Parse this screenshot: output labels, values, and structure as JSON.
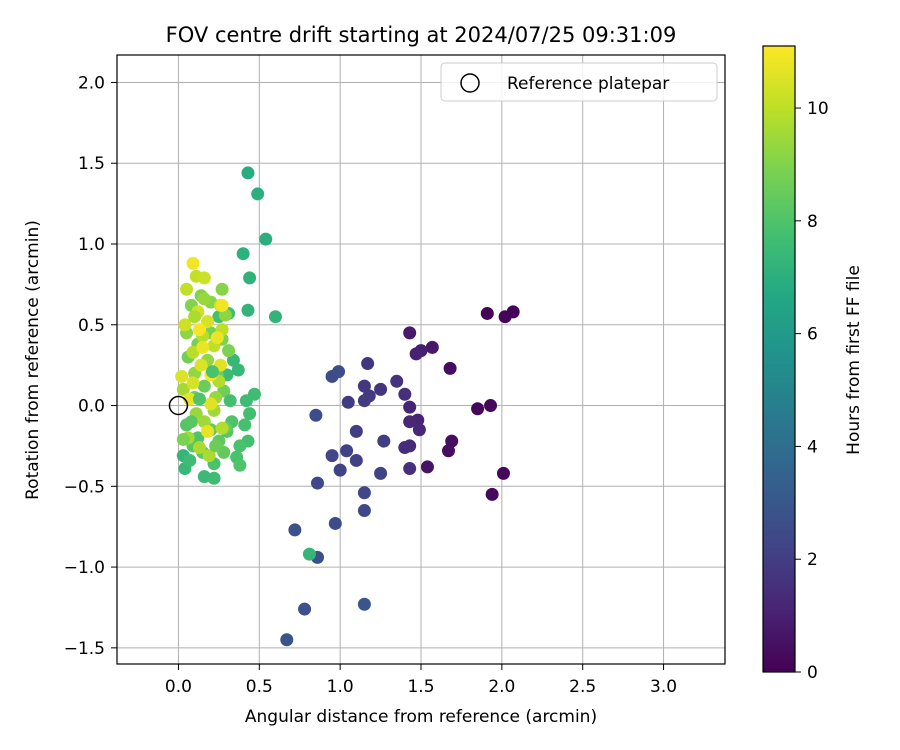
{
  "chart_data": {
    "type": "scatter",
    "title": "FOV centre drift starting at 2024/07/25 09:31:09",
    "xlabel": "Angular distance from reference (arcmin)",
    "ylabel": "Rotation from reference (arcmin)",
    "xlim": [
      -0.38,
      3.38
    ],
    "ylim": [
      -1.6,
      2.17
    ],
    "xticks": [
      "0.0",
      "0.5",
      "1.0",
      "1.5",
      "2.0",
      "2.5",
      "3.0"
    ],
    "xtick_values": [
      0.0,
      0.5,
      1.0,
      1.5,
      2.0,
      2.5,
      3.0
    ],
    "yticks": [
      "2.0",
      "1.5",
      "1.0",
      "0.5",
      "0.0",
      "−0.5",
      "−1.0",
      "−1.5"
    ],
    "ytick_values": [
      2.0,
      1.5,
      1.0,
      0.5,
      0.0,
      -0.5,
      -1.0,
      -1.5
    ],
    "grid": true,
    "legend": {
      "position": "top-right",
      "label": "Reference platepar"
    },
    "reference_point": [
      0.0,
      0.0
    ],
    "colorbar": {
      "label": "Hours from first FF file",
      "colormap": "viridis",
      "range": [
        0,
        11.1
      ],
      "ticks": [
        "0",
        "2",
        "4",
        "6",
        "8",
        "10"
      ],
      "tick_values": [
        0,
        2,
        4,
        6,
        8,
        10
      ]
    },
    "points": [
      {
        "x": 1.91,
        "y": 0.57,
        "h": 0.1
      },
      {
        "x": 2.07,
        "y": 0.58,
        "h": 0.1
      },
      {
        "x": 2.02,
        "y": 0.55,
        "h": 0.1
      },
      {
        "x": 1.85,
        "y": -0.02,
        "h": 0.2
      },
      {
        "x": 1.93,
        "y": 0.0,
        "h": 0.2
      },
      {
        "x": 2.01,
        "y": -0.42,
        "h": 0.2
      },
      {
        "x": 1.94,
        "y": -0.55,
        "h": 0.3
      },
      {
        "x": 1.68,
        "y": 0.23,
        "h": 0.4
      },
      {
        "x": 1.69,
        "y": -0.22,
        "h": 0.4
      },
      {
        "x": 1.67,
        "y": -0.28,
        "h": 0.4
      },
      {
        "x": 1.54,
        "y": -0.38,
        "h": 0.6
      },
      {
        "x": 1.57,
        "y": 0.36,
        "h": 0.7
      },
      {
        "x": 1.43,
        "y": 0.45,
        "h": 0.8
      },
      {
        "x": 1.5,
        "y": 0.34,
        "h": 0.9
      },
      {
        "x": 1.47,
        "y": 0.32,
        "h": 1.0
      },
      {
        "x": 1.43,
        "y": -0.01,
        "h": 1.1
      },
      {
        "x": 1.48,
        "y": -0.09,
        "h": 1.1
      },
      {
        "x": 1.43,
        "y": -0.1,
        "h": 1.2
      },
      {
        "x": 1.49,
        "y": -0.15,
        "h": 1.2
      },
      {
        "x": 1.43,
        "y": -0.25,
        "h": 1.3
      },
      {
        "x": 1.4,
        "y": -0.26,
        "h": 1.4
      },
      {
        "x": 1.43,
        "y": -0.39,
        "h": 1.5
      },
      {
        "x": 1.4,
        "y": 0.07,
        "h": 1.5
      },
      {
        "x": 1.35,
        "y": 0.15,
        "h": 1.6
      },
      {
        "x": 1.25,
        "y": 0.1,
        "h": 1.7
      },
      {
        "x": 1.17,
        "y": 0.26,
        "h": 1.7
      },
      {
        "x": 1.15,
        "y": 0.12,
        "h": 1.8
      },
      {
        "x": 1.18,
        "y": 0.06,
        "h": 1.8
      },
      {
        "x": 1.15,
        "y": 0.03,
        "h": 1.9
      },
      {
        "x": 1.05,
        "y": 0.02,
        "h": 1.9
      },
      {
        "x": 1.1,
        "y": -0.16,
        "h": 2.0
      },
      {
        "x": 1.27,
        "y": -0.22,
        "h": 2.0
      },
      {
        "x": 1.04,
        "y": -0.28,
        "h": 2.1
      },
      {
        "x": 1.1,
        "y": -0.34,
        "h": 2.1
      },
      {
        "x": 1.25,
        "y": -0.42,
        "h": 2.2
      },
      {
        "x": 1.0,
        "y": -0.4,
        "h": 2.2
      },
      {
        "x": 0.95,
        "y": -0.31,
        "h": 2.3
      },
      {
        "x": 1.15,
        "y": -0.54,
        "h": 2.3
      },
      {
        "x": 1.15,
        "y": -0.65,
        "h": 2.4
      },
      {
        "x": 0.86,
        "y": -0.48,
        "h": 2.4
      },
      {
        "x": 0.97,
        "y": -0.73,
        "h": 2.5
      },
      {
        "x": 0.95,
        "y": 0.18,
        "h": 2.5
      },
      {
        "x": 0.99,
        "y": 0.21,
        "h": 2.6
      },
      {
        "x": 0.85,
        "y": -0.06,
        "h": 2.6
      },
      {
        "x": 0.72,
        "y": -0.77,
        "h": 2.7
      },
      {
        "x": 0.86,
        "y": -0.94,
        "h": 2.7
      },
      {
        "x": 0.78,
        "y": -1.26,
        "h": 2.8
      },
      {
        "x": 0.67,
        "y": -1.45,
        "h": 2.9
      },
      {
        "x": 1.15,
        "y": -1.23,
        "h": 2.9
      },
      {
        "x": 0.43,
        "y": 1.44,
        "h": 6.9
      },
      {
        "x": 0.49,
        "y": 1.31,
        "h": 7.0
      },
      {
        "x": 0.54,
        "y": 1.03,
        "h": 7.0
      },
      {
        "x": 0.4,
        "y": 0.94,
        "h": 7.1
      },
      {
        "x": 0.44,
        "y": 0.79,
        "h": 7.1
      },
      {
        "x": 0.43,
        "y": 0.59,
        "h": 7.2
      },
      {
        "x": 0.6,
        "y": 0.55,
        "h": 7.2
      },
      {
        "x": 0.81,
        "y": -0.92,
        "h": 7.3
      },
      {
        "x": 0.34,
        "y": 0.28,
        "h": 7.4
      },
      {
        "x": 0.37,
        "y": 0.22,
        "h": 7.4
      },
      {
        "x": 0.3,
        "y": 0.19,
        "h": 7.5
      },
      {
        "x": 0.47,
        "y": 0.07,
        "h": 7.6
      },
      {
        "x": 0.42,
        "y": 0.03,
        "h": 7.6
      },
      {
        "x": 0.44,
        "y": -0.05,
        "h": 7.7
      },
      {
        "x": 0.41,
        "y": -0.12,
        "h": 7.8
      },
      {
        "x": 0.43,
        "y": -0.22,
        "h": 7.8
      },
      {
        "x": 0.38,
        "y": -0.25,
        "h": 7.9
      },
      {
        "x": 0.36,
        "y": -0.32,
        "h": 7.9
      },
      {
        "x": 0.38,
        "y": -0.37,
        "h": 8.0
      },
      {
        "x": 0.33,
        "y": -0.1,
        "h": 8.0
      },
      {
        "x": 0.3,
        "y": -0.16,
        "h": 8.1
      },
      {
        "x": 0.31,
        "y": 0.57,
        "h": 7.7
      },
      {
        "x": 0.25,
        "y": 0.55,
        "h": 7.8
      },
      {
        "x": 0.22,
        "y": -0.45,
        "h": 7.6
      },
      {
        "x": 0.16,
        "y": -0.44,
        "h": 7.5
      },
      {
        "x": 0.04,
        "y": -0.39,
        "h": 7.4
      },
      {
        "x": 0.03,
        "y": -0.31,
        "h": 7.3
      },
      {
        "x": 0.07,
        "y": -0.34,
        "h": 7.6
      },
      {
        "x": 0.22,
        "y": -0.36,
        "h": 7.9
      },
      {
        "x": 0.12,
        "y": -0.2,
        "h": 8.0
      },
      {
        "x": 0.05,
        "y": -0.12,
        "h": 8.1
      },
      {
        "x": 0.09,
        "y": -0.25,
        "h": 8.2
      },
      {
        "x": 0.15,
        "y": -0.29,
        "h": 8.3
      },
      {
        "x": 0.25,
        "y": -0.22,
        "h": 8.3
      },
      {
        "x": 0.28,
        "y": -0.29,
        "h": 8.4
      },
      {
        "x": 0.2,
        "y": -0.15,
        "h": 8.4
      },
      {
        "x": 0.29,
        "y": -0.14,
        "h": 8.5
      },
      {
        "x": 0.1,
        "y": 0.05,
        "h": 8.5
      },
      {
        "x": 0.16,
        "y": 0.12,
        "h": 8.6
      },
      {
        "x": 0.24,
        "y": 0.19,
        "h": 8.6
      },
      {
        "x": 0.28,
        "y": 0.09,
        "h": 8.7
      },
      {
        "x": 0.06,
        "y": 0.3,
        "h": 8.7
      },
      {
        "x": 0.12,
        "y": 0.38,
        "h": 8.8
      },
      {
        "x": 0.2,
        "y": 0.45,
        "h": 8.8
      },
      {
        "x": 0.27,
        "y": 0.41,
        "h": 8.9
      },
      {
        "x": 0.31,
        "y": 0.34,
        "h": 8.9
      },
      {
        "x": 0.08,
        "y": 0.62,
        "h": 9.0
      },
      {
        "x": 0.14,
        "y": 0.68,
        "h": 9.0
      },
      {
        "x": 0.2,
        "y": 0.64,
        "h": 9.1
      },
      {
        "x": 0.27,
        "y": 0.72,
        "h": 9.1
      },
      {
        "x": 0.29,
        "y": 0.56,
        "h": 9.2
      },
      {
        "x": 0.05,
        "y": 0.45,
        "h": 9.2
      },
      {
        "x": 0.1,
        "y": 0.2,
        "h": 9.3
      },
      {
        "x": 0.18,
        "y": 0.28,
        "h": 9.3
      },
      {
        "x": 0.23,
        "y": 0.05,
        "h": 9.4
      },
      {
        "x": 0.11,
        "y": -0.05,
        "h": 9.4
      },
      {
        "x": 0.16,
        "y": -0.1,
        "h": 9.5
      },
      {
        "x": 0.22,
        "y": -0.03,
        "h": 9.5
      },
      {
        "x": 0.03,
        "y": 0.1,
        "h": 9.6
      },
      {
        "x": 0.06,
        "y": -0.2,
        "h": 9.6
      },
      {
        "x": 0.13,
        "y": -0.26,
        "h": 9.7
      },
      {
        "x": 0.19,
        "y": -0.31,
        "h": 9.7
      },
      {
        "x": 0.27,
        "y": -0.14,
        "h": 9.8
      },
      {
        "x": 0.25,
        "y": 0.15,
        "h": 9.8
      },
      {
        "x": 0.09,
        "y": 0.33,
        "h": 9.9
      },
      {
        "x": 0.15,
        "y": 0.43,
        "h": 9.9
      },
      {
        "x": 0.22,
        "y": 0.37,
        "h": 10.0
      },
      {
        "x": 0.27,
        "y": 0.47,
        "h": 10.0
      },
      {
        "x": 0.05,
        "y": 0.72,
        "h": 10.1
      },
      {
        "x": 0.11,
        "y": 0.8,
        "h": 10.1
      },
      {
        "x": 0.16,
        "y": 0.79,
        "h": 10.2
      },
      {
        "x": 0.26,
        "y": 0.62,
        "h": 10.2
      },
      {
        "x": 0.04,
        "y": 0.5,
        "h": 10.3
      },
      {
        "x": 0.12,
        "y": 0.58,
        "h": 10.3
      },
      {
        "x": 0.18,
        "y": 0.52,
        "h": 10.4
      },
      {
        "x": 0.09,
        "y": 0.14,
        "h": 10.4
      },
      {
        "x": 0.02,
        "y": 0.18,
        "h": 10.5
      },
      {
        "x": 0.14,
        "y": 0.25,
        "h": 10.5
      },
      {
        "x": 0.26,
        "y": 0.25,
        "h": 10.6
      },
      {
        "x": 0.2,
        "y": 0.01,
        "h": 10.6
      },
      {
        "x": 0.07,
        "y": 0.04,
        "h": 10.7
      },
      {
        "x": 0.18,
        "y": -0.16,
        "h": 10.7
      },
      {
        "x": 0.15,
        "y": 0.36,
        "h": 10.8
      },
      {
        "x": 0.24,
        "y": 0.42,
        "h": 10.8
      },
      {
        "x": 0.09,
        "y": 0.88,
        "h": 10.9
      },
      {
        "x": 0.27,
        "y": 0.62,
        "h": 10.9
      },
      {
        "x": 0.13,
        "y": 0.47,
        "h": 11.0
      },
      {
        "x": 0.2,
        "y": 0.19,
        "h": 11.0
      },
      {
        "x": 0.03,
        "y": -0.21,
        "h": 8.9
      },
      {
        "x": 0.08,
        "y": -0.1,
        "h": 8.2
      },
      {
        "x": 0.13,
        "y": 0.04,
        "h": 8.0
      },
      {
        "x": 0.21,
        "y": 0.21,
        "h": 7.9
      },
      {
        "x": 0.32,
        "y": 0.03,
        "h": 7.8
      },
      {
        "x": 0.23,
        "y": -0.25,
        "h": 8.6
      },
      {
        "x": 0.16,
        "y": 0.66,
        "h": 9.4
      },
      {
        "x": 0.1,
        "y": 0.55,
        "h": 9.7
      }
    ]
  }
}
